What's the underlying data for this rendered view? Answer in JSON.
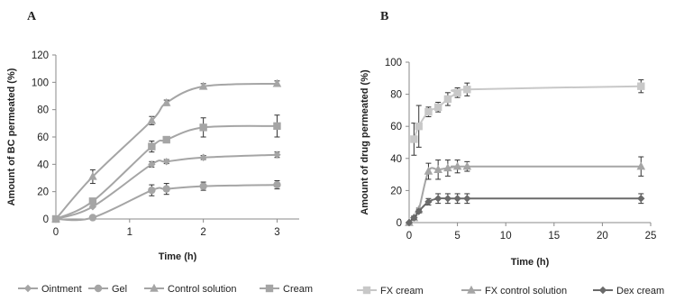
{
  "chart_data": [
    {
      "panel_label": "A",
      "type": "line",
      "xlabel": "Time (h)",
      "ylabel": "Amount of BC permeated (%)",
      "xlim": [
        0,
        3.3
      ],
      "ylim": [
        0,
        120
      ],
      "x_ticks": [
        "0",
        "1",
        "2",
        "3"
      ],
      "y_ticks": [
        "0",
        "20",
        "40",
        "60",
        "80",
        "100",
        "120"
      ],
      "grid": false,
      "legend_position": "bottom",
      "series": [
        {
          "name": "Ointment",
          "color": "#a5a5a5",
          "marker": "diamond",
          "x": [
            0,
            0.5,
            1.3,
            1.5,
            2,
            3
          ],
          "y": [
            0,
            9,
            40,
            42,
            45,
            47
          ],
          "err": [
            0,
            0,
            2,
            1.5,
            1.5,
            2
          ]
        },
        {
          "name": "Gel",
          "color": "#a5a5a5",
          "marker": "circle",
          "x": [
            0,
            0.5,
            1.3,
            1.5,
            2,
            3
          ],
          "y": [
            0,
            1,
            21,
            22,
            24,
            25
          ],
          "err": [
            0,
            0,
            4,
            4,
            3,
            3
          ]
        },
        {
          "name": "Control solution",
          "color": "#a5a5a5",
          "marker": "triangle",
          "x": [
            0,
            0.5,
            1.3,
            1.5,
            2,
            3
          ],
          "y": [
            0,
            31,
            72,
            85,
            97,
            99
          ],
          "err": [
            0,
            5,
            3,
            2,
            2,
            2
          ]
        },
        {
          "name": "Cream",
          "color": "#a5a5a5",
          "marker": "square",
          "x": [
            0,
            0.5,
            1.3,
            1.5,
            2,
            3
          ],
          "y": [
            0,
            13,
            53,
            58,
            67,
            68
          ],
          "err": [
            0,
            0,
            4,
            2,
            7,
            8
          ]
        }
      ]
    },
    {
      "panel_label": "B",
      "type": "line",
      "xlabel": "Time (h)",
      "ylabel": "Amount of drug permeated (%)",
      "xlim": [
        0,
        25
      ],
      "ylim": [
        0,
        100
      ],
      "x_ticks": [
        "0",
        "5",
        "10",
        "15",
        "20",
        "25"
      ],
      "y_ticks": [
        "0",
        "20",
        "40",
        "60",
        "80",
        "100"
      ],
      "grid": false,
      "legend_position": "bottom",
      "series": [
        {
          "name": "FX cream",
          "color": "#c8c8c8",
          "marker": "square",
          "x": [
            0.5,
            1,
            2,
            3,
            4,
            5,
            6,
            24
          ],
          "y": [
            52,
            60,
            69,
            72,
            77,
            81,
            83,
            85
          ],
          "err": [
            10,
            13,
            3,
            3,
            4,
            3,
            4,
            4
          ]
        },
        {
          "name": "FX control solution",
          "color": "#a5a5a5",
          "marker": "triangle",
          "x": [
            0,
            0.5,
            1,
            2,
            3,
            4,
            5,
            6,
            24
          ],
          "y": [
            0,
            3,
            8,
            32,
            33,
            34,
            35,
            35,
            35
          ],
          "err": [
            0,
            1,
            1,
            5,
            6,
            5,
            4,
            3,
            6
          ]
        },
        {
          "name": "Dex cream",
          "color": "#6a6a6a",
          "marker": "diamond",
          "x": [
            0,
            0.5,
            1,
            2,
            3,
            4,
            5,
            6,
            24
          ],
          "y": [
            0,
            3,
            7,
            13,
            15,
            15,
            15,
            15,
            15
          ],
          "err": [
            0,
            1,
            1,
            2,
            3,
            3,
            3,
            3,
            3
          ]
        }
      ]
    }
  ]
}
